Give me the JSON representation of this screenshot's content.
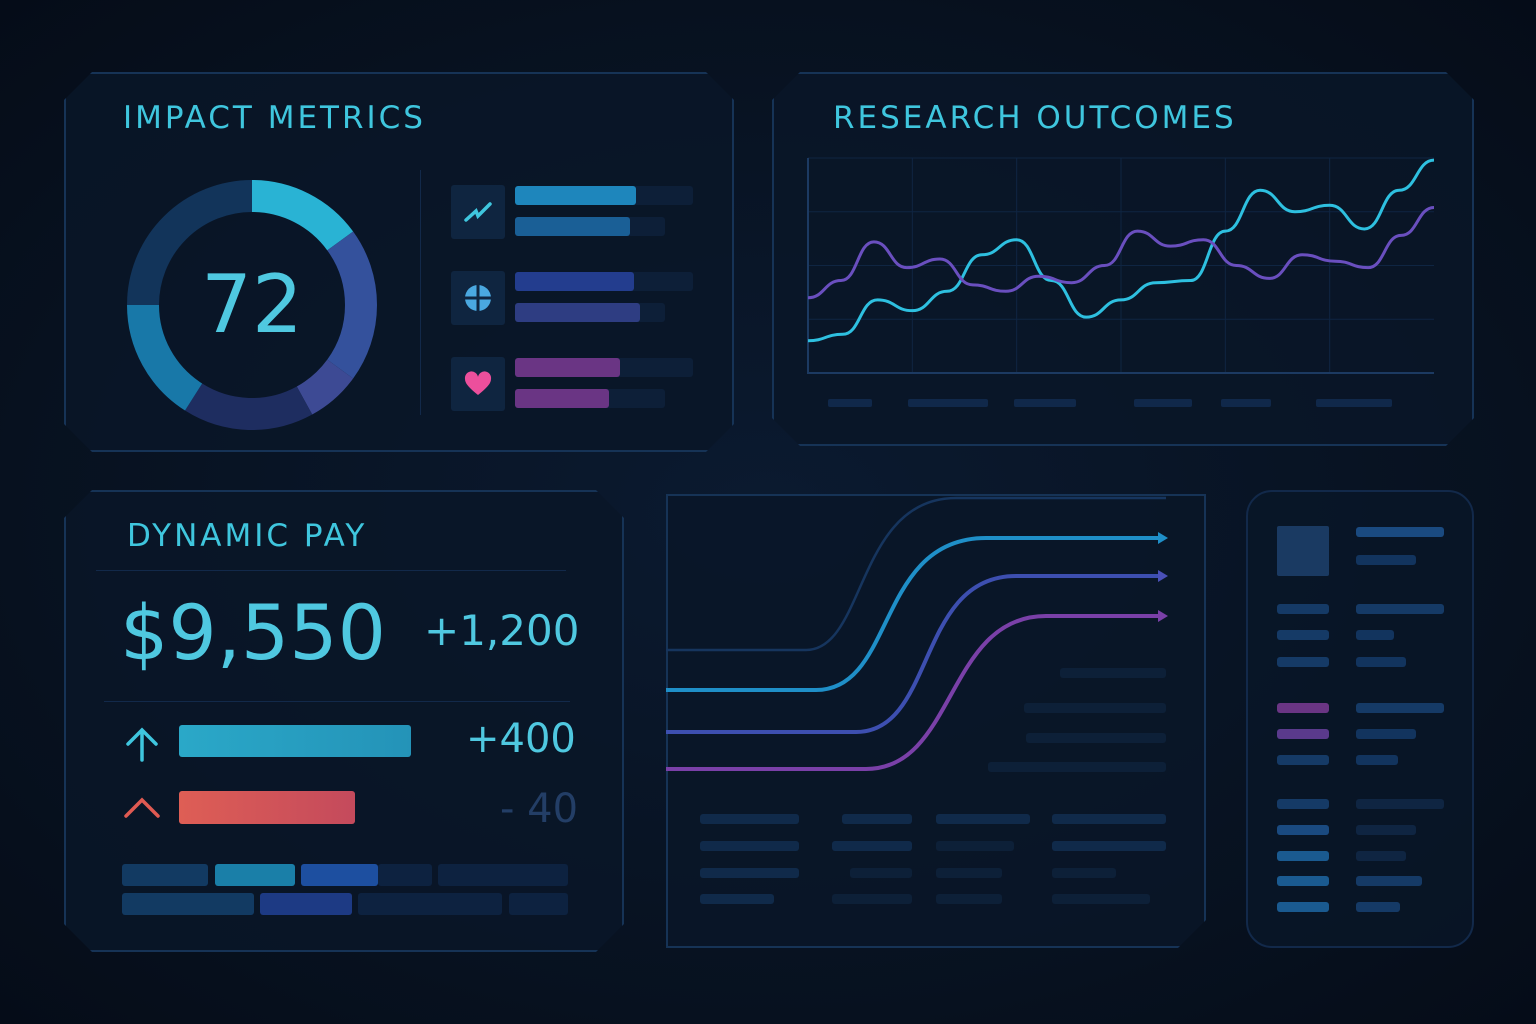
{
  "impact": {
    "title": "IMPACT METRICS",
    "score": "72",
    "donut_segments": [
      {
        "value": 15,
        "color": "#29b3d4"
      },
      {
        "value": 20,
        "color": "#34519c"
      },
      {
        "value": 7,
        "color": "#3d4a94"
      },
      {
        "value": 17,
        "color": "#1e2d60"
      },
      {
        "value": 16,
        "color": "#1878a8"
      },
      {
        "value": 25,
        "color": "#12345a"
      }
    ],
    "metrics": [
      {
        "icon": "trend-line-icon",
        "bars": [
          {
            "fill": 0.68,
            "color": "#1e86bc"
          },
          {
            "fill": 0.6,
            "color": "#1a5f96"
          }
        ]
      },
      {
        "icon": "globe-icon",
        "bars": [
          {
            "fill": 0.67,
            "color": "#233d8e"
          },
          {
            "fill": 0.65,
            "color": "#2e3d82"
          }
        ]
      },
      {
        "icon": "heart-icon",
        "bars": [
          {
            "fill": 0.59,
            "color": "#6a3584"
          },
          {
            "fill": 0.49,
            "color": "#6a3584"
          }
        ]
      }
    ]
  },
  "research": {
    "title": "RESEARCH OUTCOMES",
    "series": [
      {
        "name": "cyan",
        "color": "#2ec0e0",
        "values": [
          15,
          18,
          34,
          29,
          38,
          55,
          62,
          43,
          26,
          34,
          42,
          43,
          66,
          85,
          75,
          78,
          67,
          85,
          99
        ]
      },
      {
        "name": "purple",
        "color": "#6a4fbf",
        "values": [
          35,
          43,
          61,
          49,
          53,
          41,
          38,
          45,
          42,
          50,
          66,
          59,
          62,
          50,
          44,
          55,
          52,
          49,
          64,
          77
        ]
      }
    ]
  },
  "pay": {
    "title": "DYNAMIC PAY",
    "total": "$9,550",
    "total_change": "+1,200",
    "rows": [
      {
        "icon": "arrow-up-icon",
        "value": "+400",
        "fill": 1.0,
        "color": "#2aa8c8"
      },
      {
        "icon": "chevron-up-icon",
        "value": "- 40",
        "fill": 0.76,
        "color": "#d9545a"
      }
    ]
  }
}
